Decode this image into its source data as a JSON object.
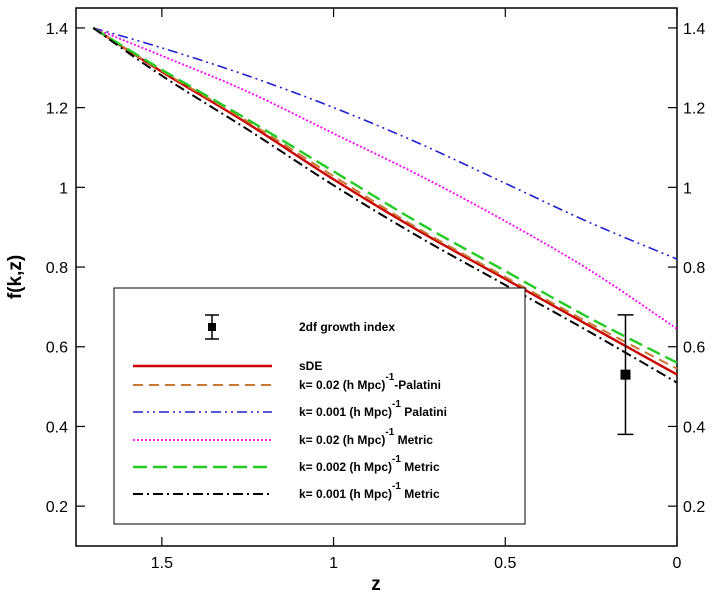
{
  "chart_data": {
    "type": "line",
    "xlabel": "z",
    "ylabel": "f(k,z)",
    "xlim": [
      1.75,
      0
    ],
    "ylim": [
      0.1,
      1.45
    ],
    "x_reversed": true,
    "grid": false,
    "x_ticks": [
      {
        "value": 1.5,
        "label": "1.5"
      },
      {
        "value": 1.0,
        "label": "1"
      },
      {
        "value": 0.5,
        "label": "0.5"
      },
      {
        "value": 0.0,
        "label": "0"
      }
    ],
    "y_ticks": [
      {
        "value": 0.2,
        "label": "0.2"
      },
      {
        "value": 0.4,
        "label": "0.4"
      },
      {
        "value": 0.6,
        "label": "0.6"
      },
      {
        "value": 0.8,
        "label": "0.8"
      },
      {
        "value": 1.0,
        "label": "1"
      },
      {
        "value": 1.2,
        "label": "1.2"
      },
      {
        "value": 1.4,
        "label": "1.4"
      }
    ],
    "x": [
      1.7,
      1.5,
      1.25,
      1.0,
      0.75,
      0.5,
      0.25,
      0.0
    ],
    "series": [
      {
        "legend": {
          "main": "sDE",
          "sup": ""
        },
        "color": "#cc0000",
        "dash": "",
        "width": 2.4,
        "values": [
          1.4,
          1.29,
          1.16,
          1.02,
          0.89,
          0.77,
          0.65,
          0.53
        ]
      },
      {
        "legend": {
          "main": "k= 0.02 (h Mpc)",
          "sup": "-1",
          "suffix": "-Palatini"
        },
        "color": "#c87832",
        "dash": "10,6",
        "width": 2,
        "values": [
          1.4,
          1.292,
          1.165,
          1.028,
          0.895,
          0.775,
          0.657,
          0.545
        ]
      },
      {
        "legend": {
          "main": "k= 0.001 (h Mpc)",
          "sup": "-1",
          "suffix": " Palatini"
        },
        "color": "#2020d0",
        "dash": "10,4,2,4,2,4",
        "width": 1.6,
        "values": [
          1.4,
          1.35,
          1.28,
          1.2,
          1.11,
          1.01,
          0.91,
          0.82
        ]
      },
      {
        "legend": {
          "main": "k= 0.02 (h Mpc)",
          "sup": "-1",
          "suffix": " Metric"
        },
        "color": "#ff00ff",
        "dash": "2,2",
        "width": 1.8,
        "values": [
          1.4,
          1.33,
          1.24,
          1.135,
          1.03,
          0.915,
          0.79,
          0.645
        ]
      },
      {
        "legend": {
          "main": "k= 0.002 (h Mpc)",
          "sup": "-1",
          "suffix": " Metric"
        },
        "color": "#22cc22",
        "dash": "14,6",
        "width": 2.4,
        "values": [
          1.4,
          1.295,
          1.17,
          1.04,
          0.91,
          0.79,
          0.67,
          0.56
        ]
      },
      {
        "legend": {
          "main": "k= 0.001 (h Mpc)",
          "sup": "-1",
          "suffix": " Metric"
        },
        "color": "#000000",
        "dash": "10,4,2,4",
        "width": 2,
        "values": [
          1.4,
          1.28,
          1.145,
          1.005,
          0.875,
          0.755,
          0.635,
          0.51
        ]
      }
    ],
    "observation": {
      "name": "2df growth index",
      "z": 0.15,
      "f": 0.53,
      "err_low": 0.38,
      "err_high": 0.68
    },
    "legend_position": "lower-left"
  }
}
